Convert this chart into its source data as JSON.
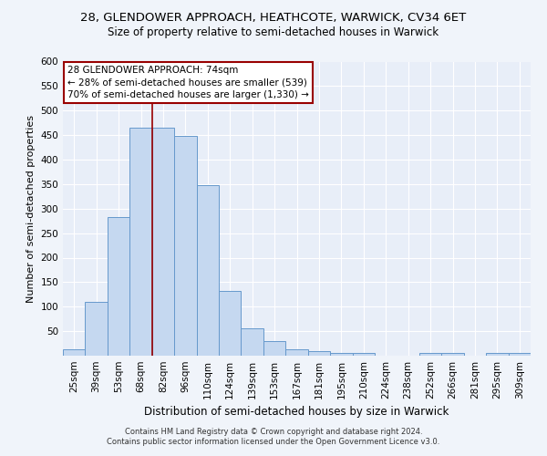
{
  "title1": "28, GLENDOWER APPROACH, HEATHCOTE, WARWICK, CV34 6ET",
  "title2": "Size of property relative to semi-detached houses in Warwick",
  "xlabel": "Distribution of semi-detached houses by size in Warwick",
  "ylabel": "Number of semi-detached properties",
  "footnote1": "Contains HM Land Registry data © Crown copyright and database right 2024.",
  "footnote2": "Contains public sector information licensed under the Open Government Licence v3.0.",
  "categories": [
    "25sqm",
    "39sqm",
    "53sqm",
    "68sqm",
    "82sqm",
    "96sqm",
    "110sqm",
    "124sqm",
    "139sqm",
    "153sqm",
    "167sqm",
    "181sqm",
    "195sqm",
    "210sqm",
    "224sqm",
    "238sqm",
    "252sqm",
    "266sqm",
    "281sqm",
    "295sqm",
    "309sqm"
  ],
  "values": [
    13,
    110,
    282,
    465,
    465,
    448,
    347,
    133,
    55,
    30,
    13,
    9,
    6,
    6,
    0,
    0,
    6,
    5,
    0,
    5,
    5
  ],
  "bar_color": "#c5d8f0",
  "bar_edge_color": "#6699cc",
  "vline_color": "#990000",
  "pct_smaller": 28,
  "count_smaller": 539,
  "pct_larger": 70,
  "count_larger": 1330,
  "annotation_box_edgecolor": "#990000",
  "ylim": [
    0,
    600
  ],
  "yticks": [
    0,
    50,
    100,
    150,
    200,
    250,
    300,
    350,
    400,
    450,
    500,
    550,
    600
  ],
  "bg_color": "#e8eef8",
  "grid_color": "#ffffff",
  "fig_bg_color": "#f0f4fa",
  "title1_fontsize": 9.5,
  "title2_fontsize": 8.5,
  "xlabel_fontsize": 8.5,
  "ylabel_fontsize": 8,
  "tick_fontsize": 7.5,
  "annot_fontsize": 7.5,
  "footnote_fontsize": 6,
  "vline_x": 3.5
}
